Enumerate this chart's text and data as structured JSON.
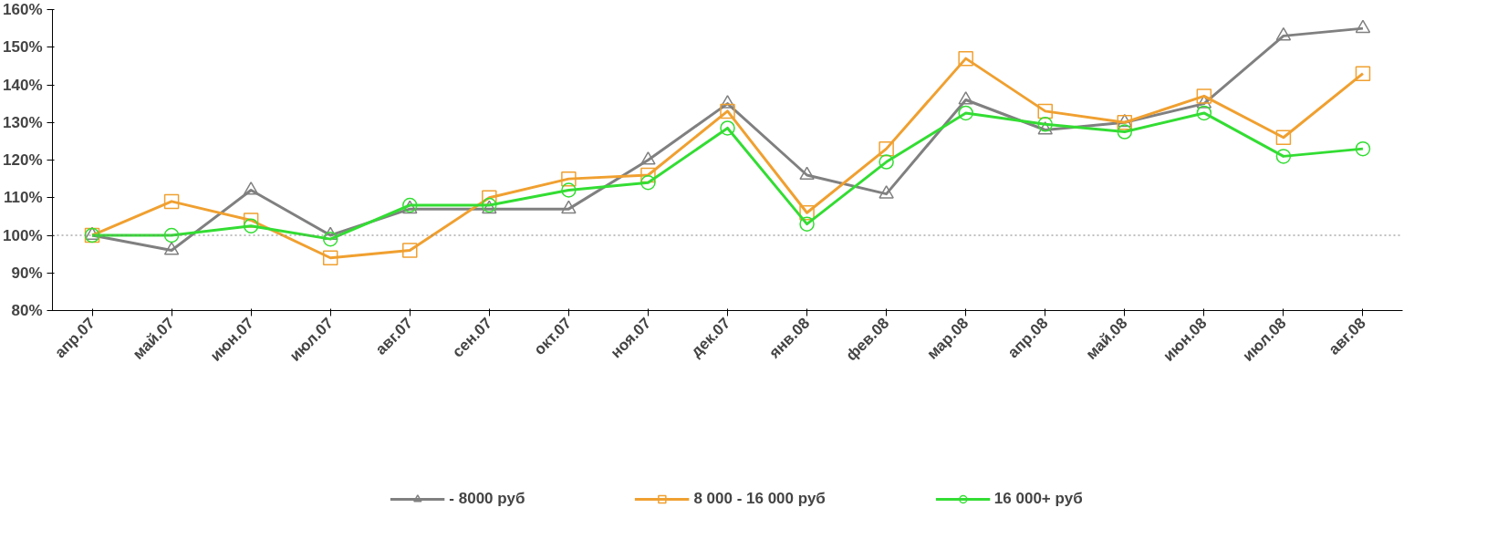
{
  "chart_data": {
    "type": "line",
    "categories": [
      "апр.07",
      "май.07",
      "июн.07",
      "июл.07",
      "авг.07",
      "сен.07",
      "окт.07",
      "ноя.07",
      "дек.07",
      "янв.08",
      "фев.08",
      "мар.08",
      "апр.08",
      "май.08",
      "июн.08",
      "июл.08",
      "авг.08"
    ],
    "series": [
      {
        "name": "- 8000 руб",
        "color": "#808080",
        "marker": "triangle",
        "values": [
          100,
          96,
          112,
          100,
          107,
          107,
          107,
          120,
          135,
          116,
          111,
          136,
          128,
          130,
          135,
          153,
          155
        ]
      },
      {
        "name": "8 000 - 16 000 руб",
        "color": "#f0a030",
        "marker": "square",
        "values": [
          100,
          109,
          104,
          94,
          96,
          110,
          115,
          116,
          133,
          106,
          123,
          147,
          133,
          130,
          137,
          126,
          143
        ]
      },
      {
        "name": "16 000+ руб",
        "color": "#33dd33",
        "marker": "circle",
        "values": [
          100,
          100,
          102.5,
          99,
          108,
          108,
          112,
          114,
          128.5,
          103,
          119.5,
          132.5,
          129.5,
          127.5,
          132.5,
          121,
          123
        ]
      }
    ],
    "ylim": [
      80,
      160
    ],
    "yticks": [
      {
        "value": 80,
        "label": "80%"
      },
      {
        "value": 90,
        "label": "90%"
      },
      {
        "value": 100,
        "label": "100%"
      },
      {
        "value": 110,
        "label": "110%"
      },
      {
        "value": 120,
        "label": "120%"
      },
      {
        "value": 130,
        "label": "130%"
      },
      {
        "value": 140,
        "label": "140%"
      },
      {
        "value": 150,
        "label": "150%"
      },
      {
        "value": 160,
        "label": "160%"
      }
    ],
    "ref_lines": [
      {
        "axis": "y",
        "value": 100,
        "color": "#808080",
        "line_style": "dotted"
      }
    ],
    "grid": false,
    "legend": "bottom"
  }
}
